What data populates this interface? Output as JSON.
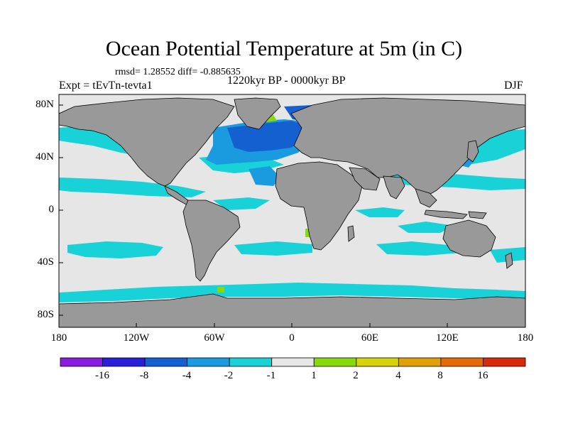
{
  "title": "Ocean Potential Temperature at 5m (in C)",
  "stats": "rmsd= 1.28552 diff= -0.885635",
  "experiment": "Expt = tEvTn-tevta1",
  "period": "1220kyr BP - 0000kyr BP",
  "season": "DJF",
  "axes": {
    "y_ticks": [
      "80N",
      "40N",
      "0",
      "40S",
      "80S"
    ],
    "x_ticks": [
      "180",
      "120W",
      "60W",
      "0",
      "60E",
      "120E",
      "180"
    ]
  },
  "colorbar": {
    "labels": [
      "-16",
      "-8",
      "-4",
      "-2",
      "-1",
      "1",
      "2",
      "4",
      "8",
      "16"
    ],
    "colors": [
      "#8a1ce0",
      "#2a1fd8",
      "#1560d0",
      "#1a9be0",
      "#18d2d8",
      "#e6e6e6",
      "#88d80c",
      "#d8d20a",
      "#e0a008",
      "#e46a06",
      "#d82a0a"
    ]
  },
  "map_colors": {
    "land": "#999999",
    "no_change": "#e6e6e6",
    "cool_1_2": "#18d2d8",
    "cool_2_4": "#1a9be0",
    "cool_4_8": "#1560d0",
    "warm_1_2": "#88d80c"
  }
}
